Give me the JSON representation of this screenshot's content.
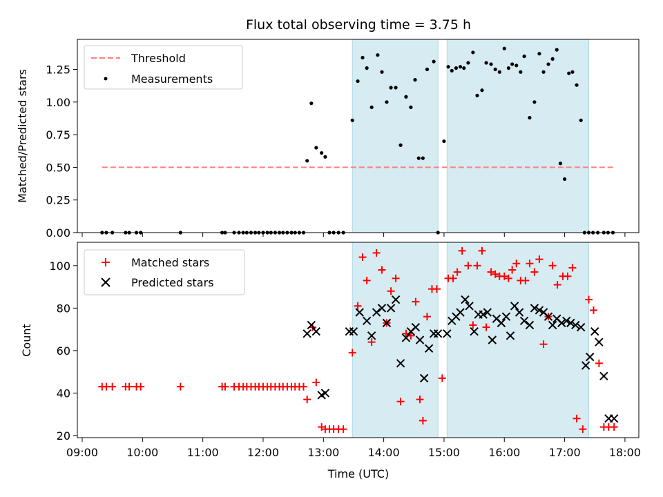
{
  "chart_data": [
    {
      "type": "scatter",
      "title": "Flux total observing time = 3.75 h",
      "xlabel": "",
      "ylabel": "Matched/Predicted stars",
      "ylim": [
        0,
        1.48
      ],
      "yticks": [
        "0.00",
        "0.25",
        "0.50",
        "0.75",
        "1.00",
        "1.25"
      ],
      "threshold": {
        "name": "Threshold",
        "value": 0.5,
        "x_range": [
          9.33,
          17.83
        ],
        "color": "#ff7f7f"
      },
      "observing_windows": [
        [
          13.48,
          14.9
        ],
        [
          15.05,
          17.4
        ]
      ],
      "window_color": "#add8e6",
      "legend": [
        "Threshold",
        "Measurements"
      ],
      "legend_position": "upper left",
      "series": [
        {
          "name": "Measurements",
          "color": "#000000",
          "x": [
            9.33,
            9.4,
            9.5,
            9.72,
            9.78,
            9.9,
            9.97,
            10.63,
            11.32,
            11.37,
            11.52,
            11.6,
            11.67,
            11.73,
            11.8,
            11.87,
            11.93,
            12.0,
            12.07,
            12.13,
            12.2,
            12.27,
            12.33,
            12.4,
            12.47,
            12.53,
            12.6,
            12.67,
            12.73,
            12.8,
            12.88,
            12.97,
            13.03,
            13.1,
            13.17,
            13.25,
            13.33,
            13.48,
            13.57,
            13.65,
            13.72,
            13.8,
            13.9,
            13.97,
            14.05,
            14.12,
            14.2,
            14.28,
            14.37,
            14.45,
            14.52,
            14.58,
            14.65,
            14.72,
            14.83,
            14.9,
            15.0,
            15.07,
            15.13,
            15.2,
            15.27,
            15.33,
            15.4,
            15.48,
            15.55,
            15.63,
            15.7,
            15.78,
            15.85,
            15.92,
            16.0,
            16.07,
            16.13,
            16.2,
            16.27,
            16.33,
            16.42,
            16.5,
            16.58,
            16.65,
            16.73,
            16.8,
            16.87,
            16.93,
            17.0,
            17.07,
            17.13,
            17.2,
            17.27,
            17.33,
            17.4,
            17.47,
            17.55,
            17.65,
            17.72,
            17.8
          ],
          "values": [
            0.0,
            0.0,
            0.0,
            0.0,
            0.0,
            0.0,
            0.0,
            0.0,
            0.0,
            0.0,
            0.0,
            0.0,
            0.0,
            0.0,
            0.0,
            0.0,
            0.0,
            0.0,
            0.0,
            0.0,
            0.0,
            0.0,
            0.0,
            0.0,
            0.0,
            0.0,
            0.0,
            0.0,
            0.55,
            0.99,
            0.65,
            0.61,
            0.58,
            0.0,
            0.0,
            0.0,
            0.0,
            0.86,
            1.16,
            1.34,
            1.26,
            0.96,
            1.36,
            1.23,
            1.0,
            1.11,
            1.11,
            0.67,
            1.04,
            0.96,
            1.17,
            0.57,
            0.57,
            1.25,
            1.31,
            0.0,
            0.7,
            1.27,
            1.24,
            1.26,
            1.27,
            1.26,
            1.3,
            1.38,
            1.05,
            1.09,
            1.3,
            1.29,
            1.25,
            1.23,
            1.41,
            1.26,
            1.29,
            1.28,
            1.23,
            1.35,
            0.88,
            1.0,
            1.37,
            1.23,
            1.29,
            1.33,
            1.4,
            0.53,
            0.41,
            1.22,
            1.23,
            1.13,
            0.86,
            0.0,
            0.0,
            0.0,
            0.0,
            0.0,
            0.0,
            0.0
          ]
        }
      ]
    },
    {
      "type": "scatter",
      "title": "",
      "xlabel": "Time (UTC)",
      "ylabel": "Count",
      "xlim": [
        8.92,
        18.23
      ],
      "ylim": [
        19,
        111
      ],
      "xticks": [
        "09:00",
        "10:00",
        "11:00",
        "12:00",
        "13:00",
        "14:00",
        "15:00",
        "16:00",
        "17:00",
        "18:00"
      ],
      "yticks": [
        "20",
        "40",
        "60",
        "80",
        "100"
      ],
      "observing_windows": [
        [
          13.48,
          14.9
        ],
        [
          15.05,
          17.4
        ]
      ],
      "window_color": "#add8e6",
      "legend": [
        "Matched stars",
        "Predicted stars"
      ],
      "legend_position": "upper left",
      "series": [
        {
          "name": "Matched stars",
          "marker": "plus",
          "color": "#ff0000",
          "x": [
            9.33,
            9.4,
            9.5,
            9.72,
            9.78,
            9.9,
            9.97,
            10.63,
            11.32,
            11.37,
            11.52,
            11.6,
            11.67,
            11.73,
            11.8,
            11.87,
            11.93,
            12.0,
            12.07,
            12.13,
            12.2,
            12.27,
            12.33,
            12.4,
            12.47,
            12.53,
            12.6,
            12.67,
            12.73,
            12.82,
            12.88,
            12.97,
            13.03,
            13.1,
            13.17,
            13.25,
            13.33,
            13.48,
            13.57,
            13.65,
            13.72,
            13.8,
            13.88,
            13.97,
            14.05,
            14.12,
            14.2,
            14.28,
            14.37,
            14.45,
            14.53,
            14.6,
            14.65,
            14.72,
            14.8,
            14.88,
            14.97,
            15.07,
            15.15,
            15.22,
            15.3,
            15.4,
            15.48,
            15.55,
            15.63,
            15.7,
            15.78,
            15.85,
            15.92,
            16.0,
            16.07,
            16.13,
            16.2,
            16.27,
            16.35,
            16.42,
            16.5,
            16.58,
            16.65,
            16.73,
            16.8,
            16.88,
            16.97,
            17.05,
            17.13,
            17.2,
            17.3,
            17.4,
            17.48,
            17.57,
            17.65,
            17.73,
            17.82
          ],
          "values": [
            43,
            43,
            43,
            43,
            43,
            43,
            43,
            43,
            43,
            43,
            43,
            43,
            43,
            43,
            43,
            43,
            43,
            43,
            43,
            43,
            43,
            43,
            43,
            43,
            43,
            43,
            43,
            43,
            37,
            71,
            45,
            24,
            23,
            23,
            23,
            23,
            23,
            59,
            81,
            104,
            93,
            64,
            106,
            98,
            73,
            88,
            94,
            36,
            68,
            67,
            83,
            37,
            27,
            76,
            89,
            89,
            47,
            94,
            94,
            97,
            107,
            100,
            72,
            100,
            107,
            71,
            97,
            96,
            95,
            95,
            94,
            98,
            101,
            93,
            93,
            101,
            97,
            103,
            63,
            76,
            100,
            91,
            95,
            95,
            99,
            28,
            23,
            84,
            79,
            54,
            24,
            24,
            24
          ]
        },
        {
          "name": "Predicted stars",
          "marker": "x",
          "color": "#000000",
          "x": [
            12.73,
            12.8,
            12.88,
            12.97,
            13.03,
            13.43,
            13.5,
            13.6,
            13.72,
            13.8,
            13.88,
            13.97,
            14.05,
            14.12,
            14.2,
            14.28,
            14.37,
            14.45,
            14.53,
            14.6,
            14.67,
            14.75,
            14.83,
            14.9,
            15.05,
            15.13,
            15.2,
            15.27,
            15.35,
            15.42,
            15.5,
            15.57,
            15.65,
            15.72,
            15.8,
            15.87,
            15.95,
            16.03,
            16.1,
            16.17,
            16.25,
            16.33,
            16.42,
            16.5,
            16.58,
            16.65,
            16.73,
            16.8,
            16.87,
            16.95,
            17.03,
            17.1,
            17.18,
            17.27,
            17.35,
            17.42,
            17.5,
            17.57,
            17.65,
            17.73,
            17.82
          ],
          "values": [
            68,
            72,
            69,
            39,
            40,
            69,
            69,
            78,
            74,
            67,
            78,
            80,
            73,
            80,
            84,
            54,
            66,
            69,
            71,
            65,
            47,
            61,
            68,
            68,
            68,
            74,
            76,
            78,
            84,
            81,
            69,
            77,
            77,
            78,
            65,
            75,
            73,
            76,
            67,
            81,
            78,
            74,
            72,
            80,
            79,
            78,
            76,
            72,
            75,
            73,
            74,
            73,
            72,
            71,
            53,
            57,
            69,
            64,
            48,
            28,
            28
          ]
        }
      ]
    }
  ]
}
